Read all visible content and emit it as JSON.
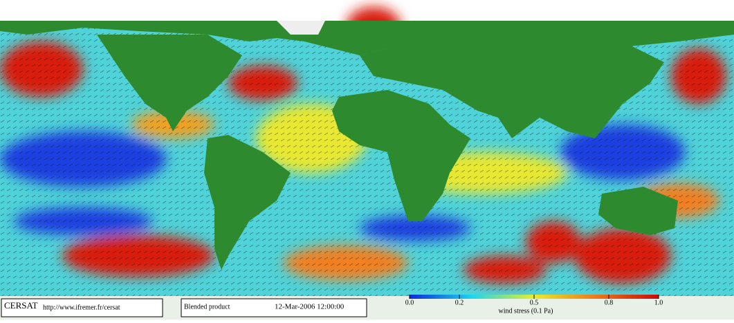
{
  "footer": {
    "logo": "CERSAT",
    "url": "http://www.ifremer.fr/cersat",
    "product": "Blended product",
    "date": "12-Mar-2006 12:00:00"
  },
  "colorbar": {
    "label": "wind stress (0.1 Pa)",
    "range": [
      0,
      1
    ],
    "ticks": [
      {
        "value": 0,
        "label": "0.0"
      },
      {
        "value": 0.2,
        "label": "0.2"
      },
      {
        "value": 0.5,
        "label": "0.5"
      },
      {
        "value": 0.8,
        "label": "0.8"
      },
      {
        "value": 1,
        "label": "1.0"
      }
    ]
  }
}
